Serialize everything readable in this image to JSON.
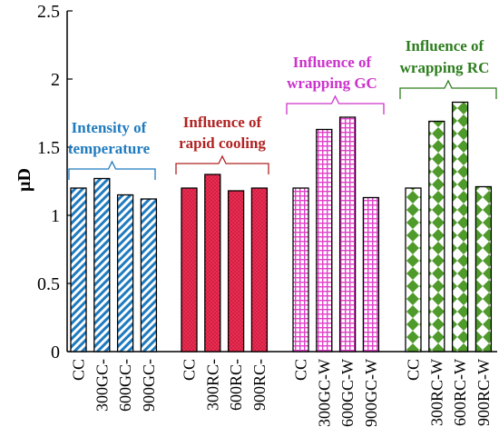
{
  "chart_data": {
    "type": "bar",
    "ylabel": "µD",
    "ylim": [
      0,
      2.5
    ],
    "yticks": [
      0,
      0.5,
      1,
      1.5,
      2,
      2.5
    ],
    "ytick_labels": [
      "0",
      "0.5",
      "1",
      "1.5",
      "2",
      "2.5"
    ],
    "grid": false,
    "legend": "none",
    "groups": [
      {
        "key": "temperature",
        "annotation": [
          "Intensity of",
          "temperature"
        ],
        "color": "#1f7bbf",
        "pattern": "diagonal",
        "categories": [
          "CC",
          "300GC-",
          "600GC-",
          "900GC-"
        ],
        "values": [
          1.2,
          1.27,
          1.15,
          1.12
        ]
      },
      {
        "key": "rapid-cooling",
        "annotation": [
          "Influence of",
          "rapid cooling"
        ],
        "color": "#b22222",
        "pattern": "dots",
        "categories": [
          "CC",
          "300RC-",
          "600RC-",
          "900RC-"
        ],
        "values": [
          1.2,
          1.3,
          1.18,
          1.2
        ]
      },
      {
        "key": "wrapping-gc",
        "annotation": [
          "Influence of",
          "wrapping GC"
        ],
        "color": "#cc33cc",
        "pattern": "grid",
        "categories": [
          "CC",
          "300GC-W",
          "600GC-W",
          "900GC-W"
        ],
        "values": [
          1.2,
          1.63,
          1.72,
          1.13
        ]
      },
      {
        "key": "wrapping-rc",
        "annotation": [
          "Influence of",
          "wrapping RC"
        ],
        "color": "#2e7d1e",
        "pattern": "diamonds",
        "categories": [
          "CC",
          "300RC-W",
          "600RC-W",
          "900RC-W"
        ],
        "values": [
          1.2,
          1.69,
          1.83,
          1.21
        ]
      }
    ]
  }
}
